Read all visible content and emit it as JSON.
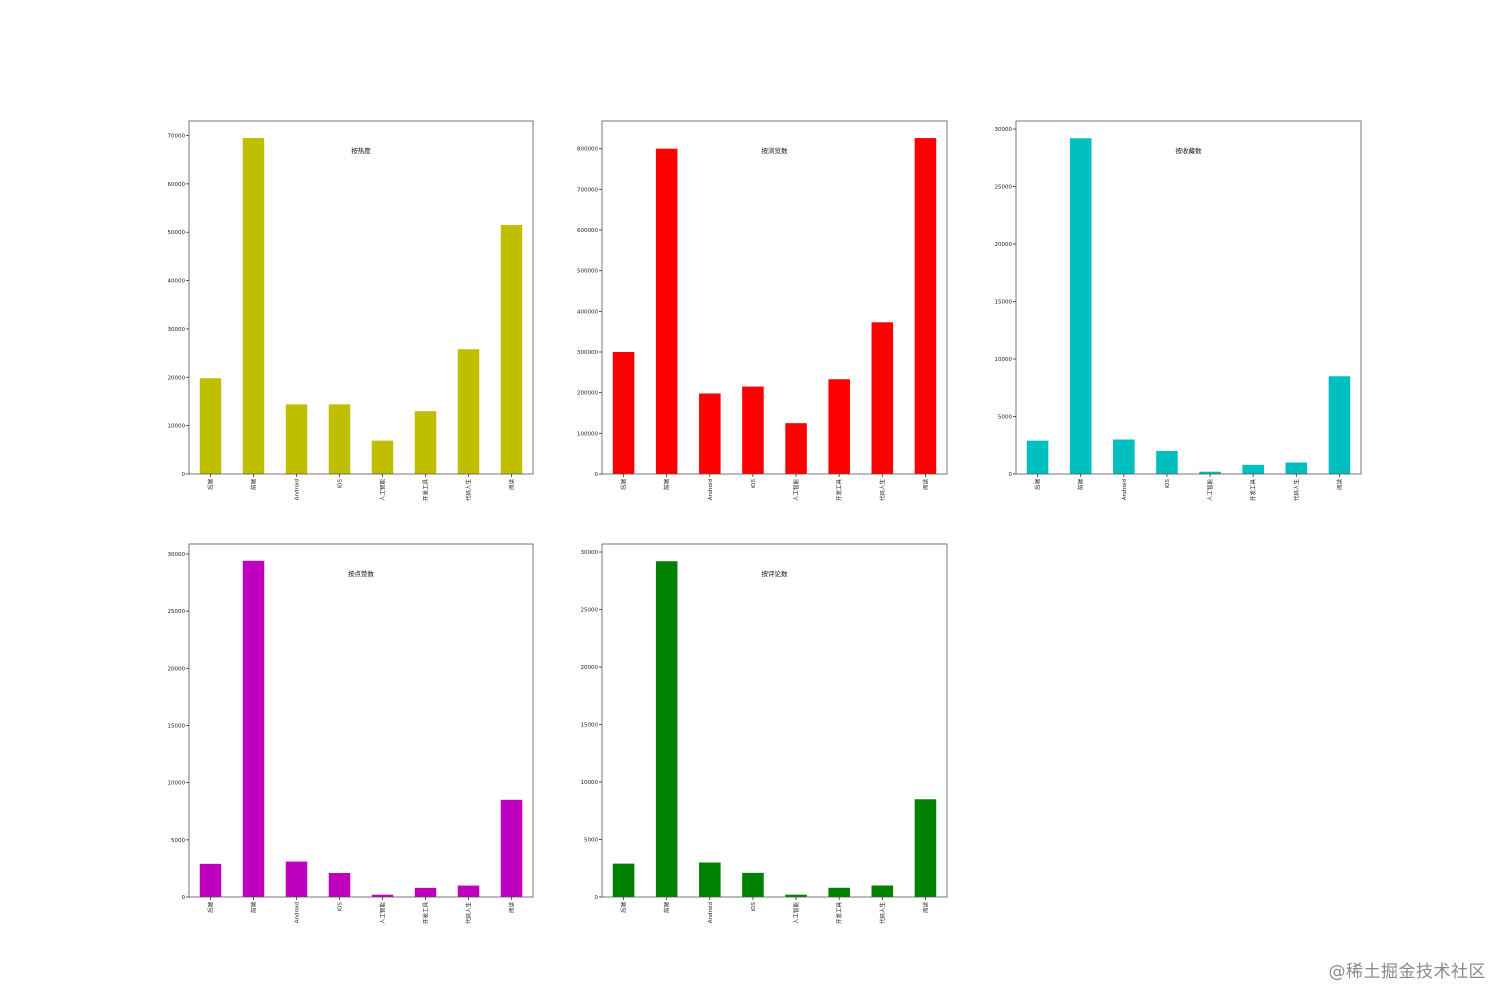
{
  "chart_data": [
    {
      "type": "bar",
      "title": "按热度",
      "categories": [
        "后端",
        "前端",
        "Android",
        "iOS",
        "人工智能",
        "开发工具",
        "代码人生",
        "阅读"
      ],
      "values": [
        19800,
        69500,
        14400,
        14400,
        6900,
        13000,
        25800,
        51500
      ],
      "yticks": [
        0,
        10000,
        20000,
        30000,
        40000,
        50000,
        60000,
        70000
      ],
      "ylim": [
        0,
        73000
      ],
      "color": "#bfbf00",
      "legend": "top"
    },
    {
      "type": "bar",
      "title": "按浏览数",
      "categories": [
        "后端",
        "前端",
        "Android",
        "iOS",
        "人工智能",
        "开发工具",
        "代码人生",
        "阅读"
      ],
      "values": [
        300000,
        800000,
        198000,
        215000,
        125000,
        233000,
        373000,
        826000
      ],
      "yticks": [
        0,
        100000,
        200000,
        300000,
        400000,
        500000,
        600000,
        700000,
        800000
      ],
      "ylim": [
        0,
        868000
      ],
      "color": "#ff0000",
      "legend": "top"
    },
    {
      "type": "bar",
      "title": "按收藏数",
      "categories": [
        "后端",
        "前端",
        "Android",
        "iOS",
        "人工智能",
        "开发工具",
        "代码人生",
        "阅读"
      ],
      "values": [
        2900,
        29200,
        3000,
        2000,
        200,
        800,
        1000,
        8500
      ],
      "yticks": [
        0,
        5000,
        10000,
        15000,
        20000,
        25000,
        30000
      ],
      "ylim": [
        0,
        30700
      ],
      "color": "#00bfbf",
      "legend": "top"
    },
    {
      "type": "bar",
      "title": "按点赞数",
      "categories": [
        "后端",
        "前端",
        "Android",
        "iOS",
        "人工智能",
        "开发工具",
        "代码人生",
        "阅读"
      ],
      "values": [
        2900,
        29400,
        3100,
        2100,
        200,
        800,
        1000,
        8500
      ],
      "yticks": [
        0,
        5000,
        10000,
        15000,
        20000,
        25000,
        30000
      ],
      "ylim": [
        0,
        30870
      ],
      "color": "#bf00bf",
      "legend": "top"
    },
    {
      "type": "bar",
      "title": "按评论数",
      "categories": [
        "后端",
        "前端",
        "Android",
        "iOS",
        "人工智能",
        "开发工具",
        "代码人生",
        "阅读"
      ],
      "values": [
        2900,
        29200,
        3000,
        2100,
        200,
        800,
        1000,
        8500
      ],
      "yticks": [
        0,
        5000,
        10000,
        15000,
        20000,
        25000,
        30000
      ],
      "ylim": [
        0,
        30700
      ],
      "color": "#008000",
      "legend": "top"
    }
  ],
  "watermark": "@稀土掘金技术社区"
}
